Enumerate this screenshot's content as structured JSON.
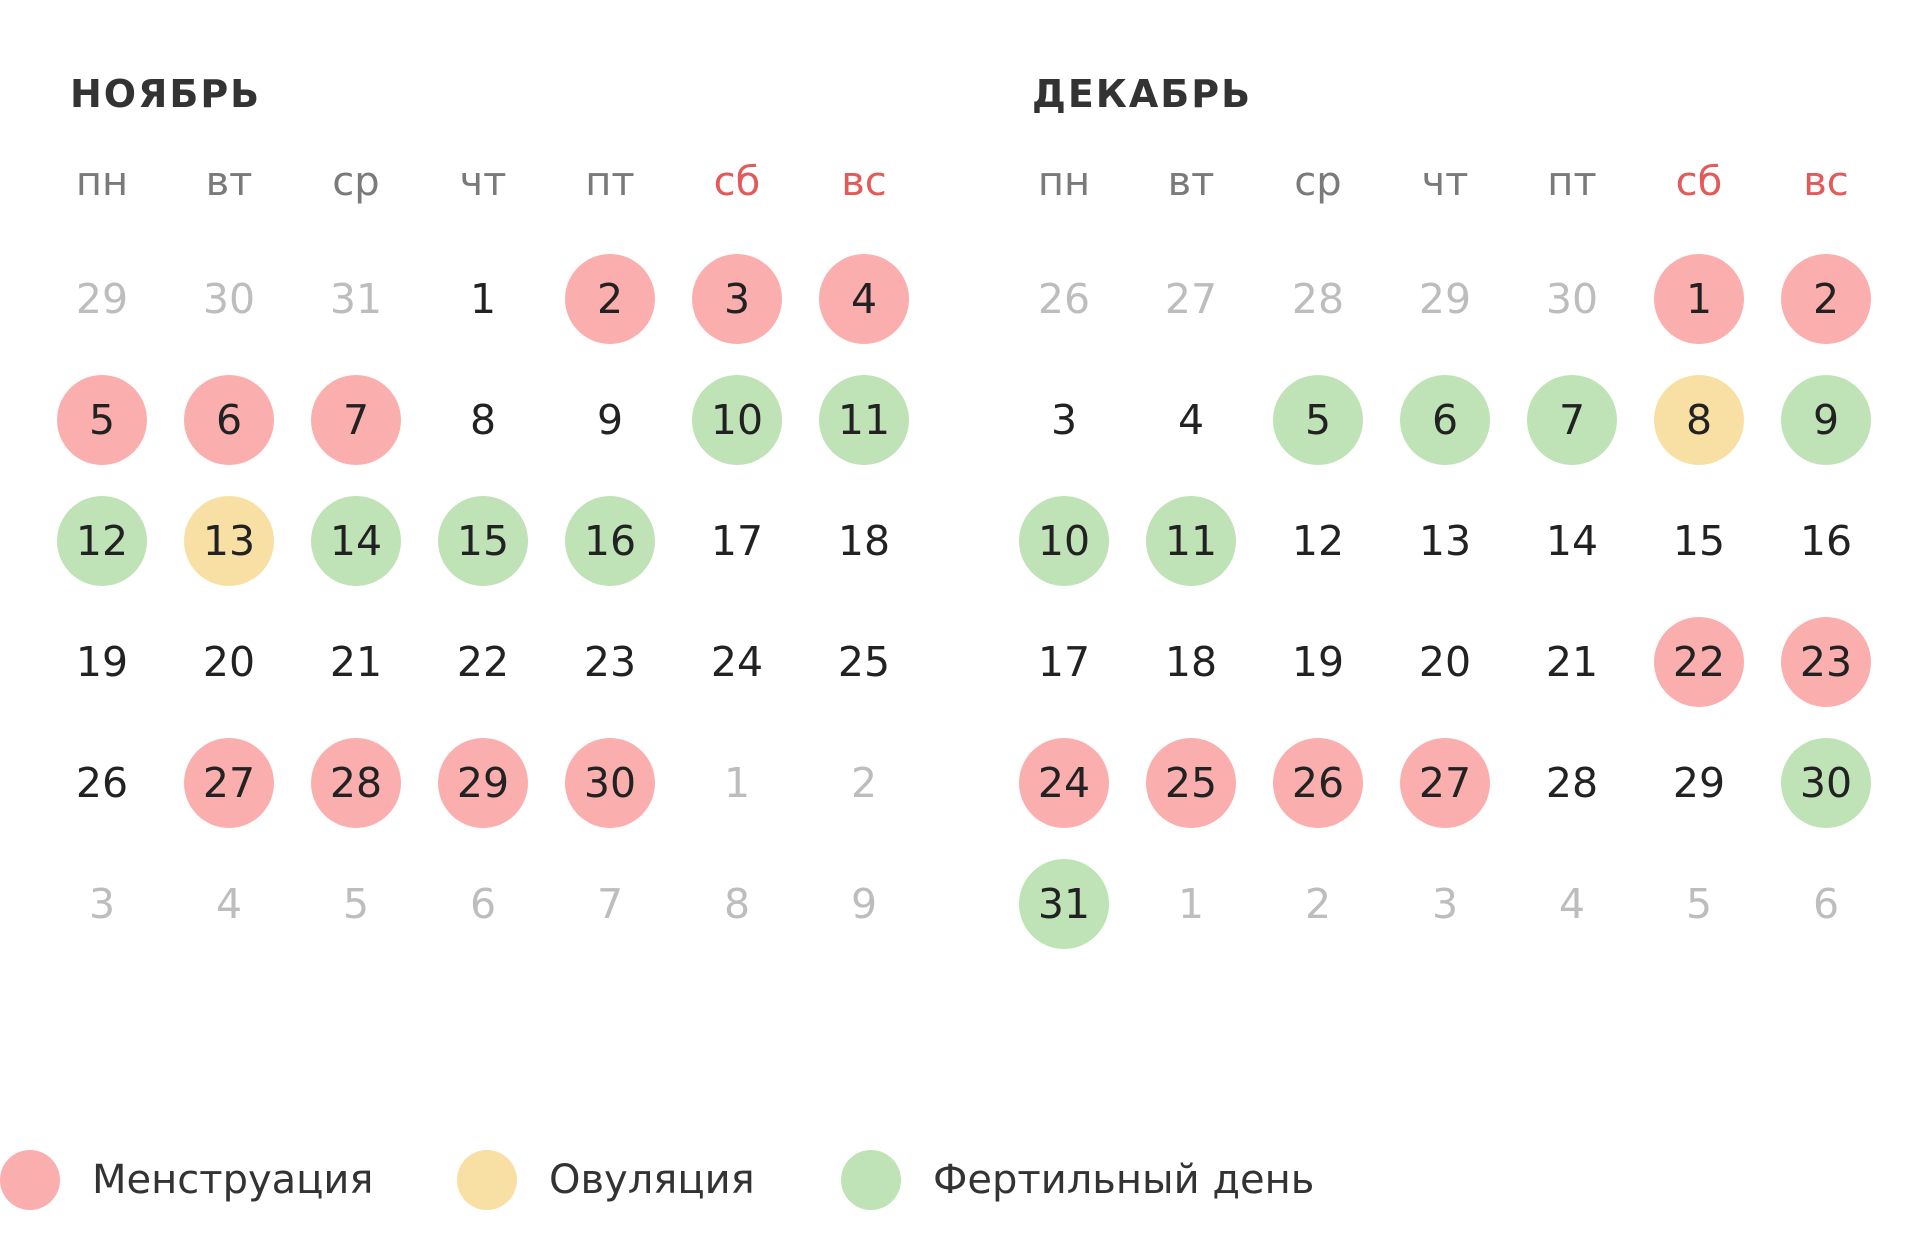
{
  "colors": {
    "menstruation": "#fbaeae",
    "ovulation": "#f8e0a5",
    "fertile": "#bfe2b6",
    "weekend_text": "#e25a5a",
    "muted_text": "#bdbdbd"
  },
  "weekdays": [
    {
      "label": "пн",
      "weekend": false
    },
    {
      "label": "вт",
      "weekend": false
    },
    {
      "label": "ср",
      "weekend": false
    },
    {
      "label": "чт",
      "weekend": false
    },
    {
      "label": "пт",
      "weekend": false
    },
    {
      "label": "сб",
      "weekend": true
    },
    {
      "label": "вс",
      "weekend": true
    }
  ],
  "months": [
    {
      "title": "НОЯБРЬ",
      "weeks": [
        [
          {
            "d": "29",
            "type": "other"
          },
          {
            "d": "30",
            "type": "other"
          },
          {
            "d": "31",
            "type": "other"
          },
          {
            "d": "1",
            "type": ""
          },
          {
            "d": "2",
            "type": "menstruation"
          },
          {
            "d": "3",
            "type": "menstruation"
          },
          {
            "d": "4",
            "type": "menstruation"
          }
        ],
        [
          {
            "d": "5",
            "type": "menstruation"
          },
          {
            "d": "6",
            "type": "menstruation"
          },
          {
            "d": "7",
            "type": "menstruation"
          },
          {
            "d": "8",
            "type": ""
          },
          {
            "d": "9",
            "type": ""
          },
          {
            "d": "10",
            "type": "fertile"
          },
          {
            "d": "11",
            "type": "fertile"
          }
        ],
        [
          {
            "d": "12",
            "type": "fertile"
          },
          {
            "d": "13",
            "type": "ovulation"
          },
          {
            "d": "14",
            "type": "fertile"
          },
          {
            "d": "15",
            "type": "fertile"
          },
          {
            "d": "16",
            "type": "fertile"
          },
          {
            "d": "17",
            "type": ""
          },
          {
            "d": "18",
            "type": ""
          }
        ],
        [
          {
            "d": "19",
            "type": ""
          },
          {
            "d": "20",
            "type": ""
          },
          {
            "d": "21",
            "type": ""
          },
          {
            "d": "22",
            "type": ""
          },
          {
            "d": "23",
            "type": ""
          },
          {
            "d": "24",
            "type": ""
          },
          {
            "d": "25",
            "type": ""
          }
        ],
        [
          {
            "d": "26",
            "type": ""
          },
          {
            "d": "27",
            "type": "menstruation"
          },
          {
            "d": "28",
            "type": "menstruation"
          },
          {
            "d": "29",
            "type": "menstruation"
          },
          {
            "d": "30",
            "type": "menstruation"
          },
          {
            "d": "1",
            "type": "other"
          },
          {
            "d": "2",
            "type": "other"
          }
        ],
        [
          {
            "d": "3",
            "type": "other"
          },
          {
            "d": "4",
            "type": "other"
          },
          {
            "d": "5",
            "type": "other"
          },
          {
            "d": "6",
            "type": "other"
          },
          {
            "d": "7",
            "type": "other"
          },
          {
            "d": "8",
            "type": "other"
          },
          {
            "d": "9",
            "type": "other"
          }
        ]
      ]
    },
    {
      "title": "ДЕКАБРЬ",
      "weeks": [
        [
          {
            "d": "26",
            "type": "other"
          },
          {
            "d": "27",
            "type": "other"
          },
          {
            "d": "28",
            "type": "other"
          },
          {
            "d": "29",
            "type": "other"
          },
          {
            "d": "30",
            "type": "other"
          },
          {
            "d": "1",
            "type": "menstruation"
          },
          {
            "d": "2",
            "type": "menstruation"
          }
        ],
        [
          {
            "d": "3",
            "type": ""
          },
          {
            "d": "4",
            "type": ""
          },
          {
            "d": "5",
            "type": "fertile"
          },
          {
            "d": "6",
            "type": "fertile"
          },
          {
            "d": "7",
            "type": "fertile"
          },
          {
            "d": "8",
            "type": "ovulation"
          },
          {
            "d": "9",
            "type": "fertile"
          }
        ],
        [
          {
            "d": "10",
            "type": "fertile"
          },
          {
            "d": "11",
            "type": "fertile"
          },
          {
            "d": "12",
            "type": ""
          },
          {
            "d": "13",
            "type": ""
          },
          {
            "d": "14",
            "type": ""
          },
          {
            "d": "15",
            "type": ""
          },
          {
            "d": "16",
            "type": ""
          }
        ],
        [
          {
            "d": "17",
            "type": ""
          },
          {
            "d": "18",
            "type": ""
          },
          {
            "d": "19",
            "type": ""
          },
          {
            "d": "20",
            "type": ""
          },
          {
            "d": "21",
            "type": ""
          },
          {
            "d": "22",
            "type": "menstruation"
          },
          {
            "d": "23",
            "type": "menstruation"
          }
        ],
        [
          {
            "d": "24",
            "type": "menstruation"
          },
          {
            "d": "25",
            "type": "menstruation"
          },
          {
            "d": "26",
            "type": "menstruation"
          },
          {
            "d": "27",
            "type": "menstruation"
          },
          {
            "d": "28",
            "type": ""
          },
          {
            "d": "29",
            "type": ""
          },
          {
            "d": "30",
            "type": "fertile"
          }
        ],
        [
          {
            "d": "31",
            "type": "fertile"
          },
          {
            "d": "1",
            "type": "other"
          },
          {
            "d": "2",
            "type": "other"
          },
          {
            "d": "3",
            "type": "other"
          },
          {
            "d": "4",
            "type": "other"
          },
          {
            "d": "5",
            "type": "other"
          },
          {
            "d": "6",
            "type": "other"
          }
        ]
      ]
    }
  ],
  "legend": [
    {
      "label": "Менструация",
      "type": "menstruation"
    },
    {
      "label": "Овуляция",
      "type": "ovulation"
    },
    {
      "label": "Фертильный день",
      "type": "fertile"
    }
  ]
}
